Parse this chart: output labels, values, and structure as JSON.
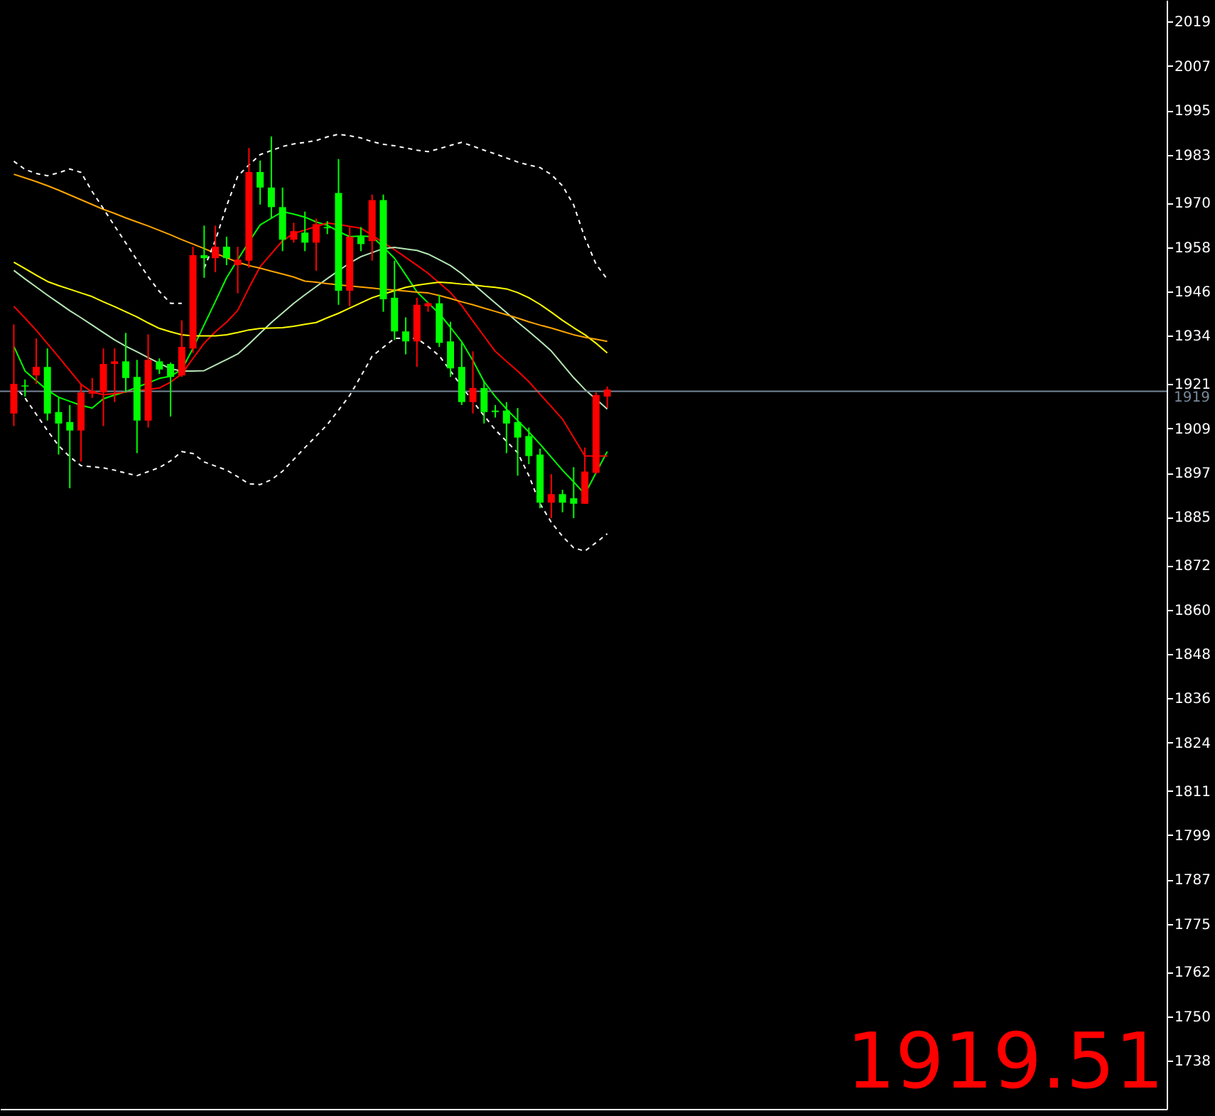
{
  "chart_data": {
    "type": "candlestick",
    "categories": [
      null,
      null,
      null,
      null,
      null,
      null,
      null,
      null,
      null,
      null,
      null,
      null,
      null,
      null,
      null,
      null,
      null,
      null,
      null,
      null,
      null,
      null,
      null,
      null,
      null,
      null,
      null,
      null,
      null,
      null,
      null,
      null,
      null,
      null,
      null,
      null,
      null,
      null,
      null,
      null,
      null,
      null,
      null,
      null,
      null,
      null,
      null,
      null,
      null,
      null,
      null,
      null,
      null,
      null
    ],
    "ohlc": [
      [
        1913.0,
        1937.1,
        1909.6,
        1921.0
      ],
      [
        1920.6,
        1922.2,
        1917.6,
        1920.3
      ],
      [
        1923.3,
        1933.3,
        1921.0,
        1925.6
      ],
      [
        1925.6,
        1930.6,
        1911.1,
        1913.0
      ],
      [
        1913.4,
        1917.2,
        1901.9,
        1910.3
      ],
      [
        1910.7,
        1915.3,
        1892.8,
        1908.4
      ],
      [
        1908.4,
        1921.0,
        1900.0,
        1918.7
      ],
      [
        1918.4,
        1922.6,
        1917.2,
        1919.1
      ],
      [
        1918.7,
        1930.6,
        1909.6,
        1926.4
      ],
      [
        1926.4,
        1930.6,
        1916.1,
        1927.1
      ],
      [
        1927.1,
        1934.8,
        1918.7,
        1922.6
      ],
      [
        1922.9,
        1927.5,
        1902.3,
        1911.1
      ],
      [
        1911.1,
        1934.4,
        1909.2,
        1927.5
      ],
      [
        1927.1,
        1927.9,
        1923.7,
        1924.9
      ],
      [
        1926.4,
        1926.8,
        1912.2,
        1922.9
      ],
      [
        1923.3,
        1938.2,
        1922.9,
        1931.0
      ],
      [
        1930.6,
        1958.1,
        1929.4,
        1955.8
      ],
      [
        1955.8,
        1963.8,
        1949.7,
        1955.0
      ],
      [
        1955.0,
        1963.8,
        1951.2,
        1958.1
      ],
      [
        1958.1,
        1960.8,
        1953.1,
        1955.0
      ],
      [
        1953.1,
        1958.1,
        1945.5,
        1954.6
      ],
      [
        1954.3,
        1984.8,
        1952.4,
        1978.3
      ],
      [
        1978.3,
        1981.4,
        1969.5,
        1974.1
      ],
      [
        1974.1,
        1987.9,
        1965.7,
        1968.8
      ],
      [
        1968.8,
        1974.1,
        1956.9,
        1960.0
      ],
      [
        1960.0,
        1964.6,
        1959.2,
        1962.3
      ],
      [
        1961.9,
        1967.6,
        1956.9,
        1959.2
      ],
      [
        1959.2,
        1965.7,
        1951.6,
        1964.2
      ],
      [
        1963.4,
        1965.0,
        1961.5,
        1963.1
      ],
      [
        1972.6,
        1981.8,
        1942.4,
        1946.2
      ],
      [
        1946.2,
        1963.4,
        1942.0,
        1960.8
      ],
      [
        1960.8,
        1963.4,
        1956.9,
        1958.8
      ],
      [
        1959.6,
        1972.2,
        1954.3,
        1970.7
      ],
      [
        1970.7,
        1972.2,
        1940.5,
        1943.9
      ],
      [
        1944.3,
        1954.3,
        1932.9,
        1935.2
      ],
      [
        1935.2,
        1939.0,
        1929.0,
        1932.5
      ],
      [
        1932.5,
        1944.3,
        1925.6,
        1942.4
      ],
      [
        1942.0,
        1943.2,
        1940.5,
        1942.8
      ],
      [
        1942.8,
        1945.1,
        1931.0,
        1932.1
      ],
      [
        1932.5,
        1937.8,
        1922.9,
        1925.2
      ],
      [
        1925.6,
        1932.1,
        1915.3,
        1916.1
      ],
      [
        1916.1,
        1929.8,
        1913.0,
        1919.9
      ],
      [
        1919.9,
        1921.8,
        1910.3,
        1913.4
      ],
      [
        1913.8,
        1915.3,
        1911.9,
        1913.4
      ],
      [
        1913.8,
        1916.1,
        1902.3,
        1910.3
      ],
      [
        1910.7,
        1914.5,
        1896.2,
        1906.5
      ],
      [
        1906.9,
        1909.2,
        1899.3,
        1901.5
      ],
      [
        1901.9,
        1903.5,
        1887.4,
        1888.9
      ],
      [
        1888.9,
        1896.6,
        1884.7,
        1891.2
      ],
      [
        1891.2,
        1892.4,
        1886.3,
        1888.9
      ],
      [
        1890.1,
        1898.5,
        1884.7,
        1888.6
      ],
      [
        1888.6,
        1903.8,
        1888.6,
        1897.3
      ],
      [
        1897.0,
        1918.7,
        1896.6,
        1918.0
      ],
      [
        1917.6,
        1920.3,
        1914.5,
        1919.5
      ]
    ],
    "colors": [
      "#ff0000",
      "#00ff00",
      "#ff0000",
      "#00ff00",
      "#00ff00",
      "#00ff00",
      "#ff0000",
      "#ff0000",
      "#ff0000",
      "#ff0000",
      "#00ff00",
      "#00ff00",
      "#ff0000",
      "#00ff00",
      "#00ff00",
      "#ff0000",
      "#ff0000",
      "#00ff00",
      "#ff0000",
      "#00ff00",
      "#ff0000",
      "#ff0000",
      "#00ff00",
      "#00ff00",
      "#00ff00",
      "#ff0000",
      "#00ff00",
      "#ff0000",
      "#00ff00",
      "#00ff00",
      "#ff0000",
      "#00ff00",
      "#ff0000",
      "#00ff00",
      "#00ff00",
      "#00ff00",
      "#ff0000",
      "#ff0000",
      "#00ff00",
      "#00ff00",
      "#00ff00",
      "#ff0000",
      "#00ff00",
      "#00ff00",
      "#00ff00",
      "#00ff00",
      "#00ff00",
      "#00ff00",
      "#ff0000",
      "#00ff00",
      "#00ff00",
      "#ff0000",
      "#ff0000",
      "#ff0000"
    ],
    "series": [
      {
        "type": "line",
        "color": "#00ff00",
        "values": [
          1931.2,
          1924.5,
          1921.9,
          1919.3,
          1917.4,
          1916.3,
          1915.2,
          1914.5,
          1917.0,
          1918.0,
          1918.9,
          1920.1,
          1921.3,
          1922.5,
          1923.1,
          1924.9,
          1930.6,
          1937.0,
          1943.3,
          1949.7,
          1954.6,
          1959.4,
          1964.0,
          1965.8,
          1967.6,
          1966.9,
          1966.1,
          1964.8,
          1963.9,
          1962.2,
          1960.8,
          1961.0,
          1960.8,
          1958.0,
          1955.0,
          1950.5,
          1945.9,
          1942.9,
          1940.0,
          1936.3,
          1932.4,
          1927.3,
          1921.6,
          1917.6,
          1914.2,
          1911.1,
          1908.0,
          1904.7,
          1901.2,
          1897.7,
          1894.5,
          1891.2,
          1897.0,
          1902.7
        ]
      },
      {
        "type": "line",
        "color": "#ff0000",
        "values": [
          1942.0,
          1938.8,
          1935.5,
          1931.9,
          1928.3,
          1924.6,
          1920.9,
          1918.8,
          1918.1,
          1918.4,
          1918.8,
          1919.2,
          1919.5,
          1919.9,
          1921.5,
          1923.7,
          1927.9,
          1932.0,
          1935.1,
          1937.7,
          1940.9,
          1947.0,
          1952.7,
          1956.2,
          1959.7,
          1961.7,
          1962.6,
          1963.6,
          1964.5,
          1964.1,
          1963.6,
          1963.1,
          1961.2,
          1959.2,
          1957.3,
          1955.2,
          1953.1,
          1950.9,
          1948.3,
          1945.7,
          1942.2,
          1938.0,
          1933.9,
          1929.8,
          1927.1,
          1924.5,
          1921.6,
          1918.2,
          1914.9,
          1911.5,
          1906.5,
          1901.5,
          1901.5,
          1901.5
        ]
      },
      {
        "type": "line",
        "color": "#b4e6b4",
        "values": [
          1951.7,
          1949.4,
          1947.2,
          1945.0,
          1942.9,
          1940.8,
          1938.9,
          1936.9,
          1934.9,
          1932.9,
          1931.2,
          1929.7,
          1928.1,
          1926.6,
          1925.1,
          1924.5,
          1924.5,
          1924.6,
          1926.1,
          1927.6,
          1929.1,
          1931.8,
          1934.7,
          1937.6,
          1940.2,
          1942.8,
          1945.1,
          1947.3,
          1949.5,
          1951.6,
          1953.7,
          1955.4,
          1956.5,
          1957.6,
          1957.9,
          1957.5,
          1957.1,
          1956.1,
          1954.6,
          1953.0,
          1950.8,
          1948.1,
          1945.5,
          1942.9,
          1940.3,
          1937.7,
          1935.2,
          1932.6,
          1929.9,
          1926.3,
          1922.7,
          1919.5,
          1916.9,
          1914.2
        ]
      },
      {
        "type": "line",
        "color": "#ffff00",
        "values": [
          1953.9,
          1952.2,
          1950.4,
          1948.7,
          1947.6,
          1946.6,
          1945.6,
          1944.6,
          1943.2,
          1941.9,
          1940.5,
          1939.1,
          1937.5,
          1936.0,
          1935.1,
          1934.3,
          1934.0,
          1934.0,
          1934.0,
          1934.3,
          1934.9,
          1935.6,
          1936.0,
          1936.1,
          1936.2,
          1936.6,
          1937.1,
          1937.6,
          1938.9,
          1940.1,
          1941.5,
          1942.9,
          1944.3,
          1945.3,
          1946.2,
          1947.1,
          1947.7,
          1948.1,
          1948.5,
          1948.3,
          1948.0,
          1947.8,
          1947.4,
          1947.1,
          1946.7,
          1945.7,
          1944.3,
          1942.5,
          1940.4,
          1938.2,
          1936.2,
          1934.3,
          1932.0,
          1929.4
        ]
      },
      {
        "type": "line",
        "color": "#ffa500",
        "values": [
          1977.7,
          1976.7,
          1975.7,
          1974.6,
          1973.4,
          1972.1,
          1970.8,
          1969.5,
          1968.2,
          1967.1,
          1965.9,
          1964.8,
          1963.7,
          1962.5,
          1961.3,
          1960.0,
          1958.8,
          1957.6,
          1956.3,
          1955.1,
          1953.9,
          1953.0,
          1952.3,
          1951.5,
          1950.7,
          1949.9,
          1948.8,
          1948.5,
          1948.1,
          1947.8,
          1947.5,
          1947.2,
          1946.9,
          1946.6,
          1946.4,
          1946.1,
          1945.8,
          1945.6,
          1944.9,
          1944.1,
          1943.2,
          1942.4,
          1941.5,
          1940.6,
          1939.7,
          1938.8,
          1937.8,
          1936.9,
          1936.1,
          1935.2,
          1934.3,
          1933.6,
          1933.1,
          1932.5
        ]
      },
      {
        "type": "line",
        "color": "#ffffff",
        "line_style": "dashed",
        "values": [
          1981.2,
          1979.0,
          1977.9,
          1977.3,
          1978.1,
          1979.1,
          1978.2,
          1973.0,
          1968.4,
          1963.7,
          1959.1,
          1954.5,
          1950.0,
          1946.0,
          1942.8,
          1942.8,
          null,
          1952.3,
          1959.8,
          1969.1,
          1977.2,
          1980.2,
          1983.0,
          1984.1,
          1985.2,
          1985.9,
          1986.3,
          1986.8,
          1987.8,
          1988.5,
          1988.1,
          1987.5,
          1986.5,
          1985.8,
          1985.4,
          1984.8,
          1984.2,
          1983.8,
          1984.6,
          1985.5,
          1986.3,
          1985.3,
          1984.2,
          1983.2,
          1982.1,
          1981.0,
          1980.2,
          1979.5,
          1977.6,
          1974.6,
          1969.4,
          1960.5,
          1953.4,
          1949.3
        ]
      },
      {
        "type": "line",
        "color": "#ffffff",
        "line_style": "dashed",
        "values": [
          1920.6,
          1917.2,
          1912.8,
          1908.4,
          1904.3,
          1901.3,
          1898.9,
          1898.6,
          1898.3,
          1897.7,
          1896.9,
          1896.2,
          1897.3,
          1898.4,
          1900.2,
          1902.7,
          1902.2,
          1899.9,
          1898.8,
          1897.7,
          1895.9,
          1894.0,
          1893.8,
          1895.1,
          1897.4,
          1900.6,
          1903.8,
          1906.9,
          1910.0,
          1913.9,
          1917.9,
          1923.1,
          1928.5,
          1930.9,
          1933.3,
          1933.3,
          1933.3,
          1931.1,
          1928.6,
          1924.5,
          1920.3,
          1916.3,
          1912.4,
          1908.6,
          1905.5,
          1902.4,
          1896.2,
          1888.6,
          1883.6,
          1879.8,
          1876.7,
          1875.8,
          1878.1,
          1880.5
        ]
      }
    ],
    "ylim": [
      1725.0,
      2024.8
    ],
    "yticks": [
      2019,
      2007,
      1995,
      1983,
      1970,
      1958,
      1946,
      1934,
      1921,
      1909,
      1897,
      1885,
      1872,
      1860,
      1848,
      1836,
      1824,
      1811,
      1799,
      1787,
      1775,
      1762,
      1750,
      1738
    ],
    "tick_labels": "y",
    "marker": "none",
    "ref_lines": [
      {
        "axis": "y",
        "value": 1919,
        "label": "1919",
        "color": "#778899"
      }
    ],
    "annotations": [
      "1919.51"
    ]
  }
}
